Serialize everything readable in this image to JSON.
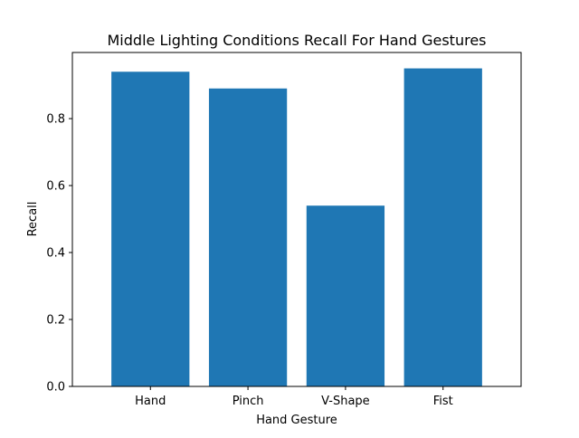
{
  "chart_data": {
    "type": "bar",
    "title": "Middle Lighting Conditions Recall For Hand Gestures",
    "xlabel": "Hand Gesture",
    "ylabel": "Recall",
    "categories": [
      "Hand",
      "Pinch",
      "V-Shape",
      "Fist"
    ],
    "values": [
      0.94,
      0.89,
      0.54,
      0.95
    ],
    "ylim": [
      0,
      0.9975
    ],
    "yticks": [
      0.0,
      0.2,
      0.4,
      0.6,
      0.8
    ],
    "ytick_labels": [
      "0.0",
      "0.2",
      "0.4",
      "0.6",
      "0.8"
    ],
    "bar_color": "#1f77b4",
    "grid": false,
    "legend": "none"
  }
}
